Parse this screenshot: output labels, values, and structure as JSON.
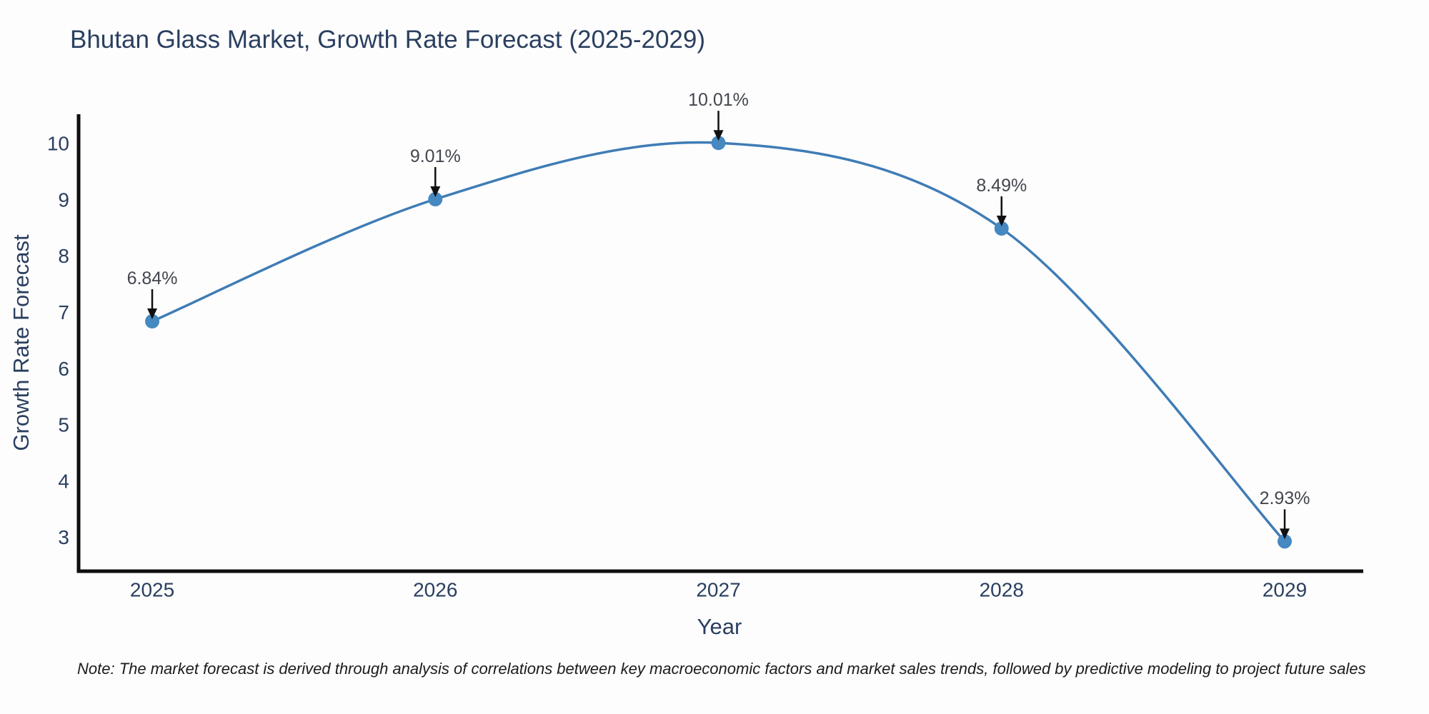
{
  "chart_data": {
    "type": "line",
    "title": "Bhutan Glass Market, Growth Rate Forecast (2025-2029)",
    "xlabel": "Year",
    "ylabel": "Growth Rate Forecast",
    "x": [
      2025,
      2026,
      2027,
      2028,
      2029
    ],
    "values": [
      6.84,
      9.01,
      10.01,
      8.49,
      2.93
    ],
    "point_labels": [
      "6.84%",
      "9.01%",
      "10.01%",
      "8.49%",
      "2.93%"
    ],
    "x_ticks": [
      "2025",
      "2026",
      "2027",
      "2028",
      "2029"
    ],
    "y_ticks": [
      "3",
      "4",
      "5",
      "6",
      "7",
      "8",
      "9",
      "10"
    ],
    "y_tick_values": [
      3,
      4,
      5,
      6,
      7,
      8,
      9,
      10
    ],
    "x_range": [
      2024.74,
      2029.27
    ],
    "y_range": [
      2.4,
      10.52
    ],
    "line_shape": "spline",
    "grid": false,
    "legend_position": "none",
    "colors": {
      "line": "#3f7cb5",
      "marker": "#4688c0",
      "axis_line": "#0f0f0f",
      "tick_text": "#2a3f5f",
      "annotation_text": "#43464d",
      "annotation_arrow": "#111111"
    }
  },
  "note": {
    "text": "Note: The market forecast is derived through analysis of correlations between key macroeconomic factors and market sales trends, followed by predictive modeling to project future sales"
  }
}
